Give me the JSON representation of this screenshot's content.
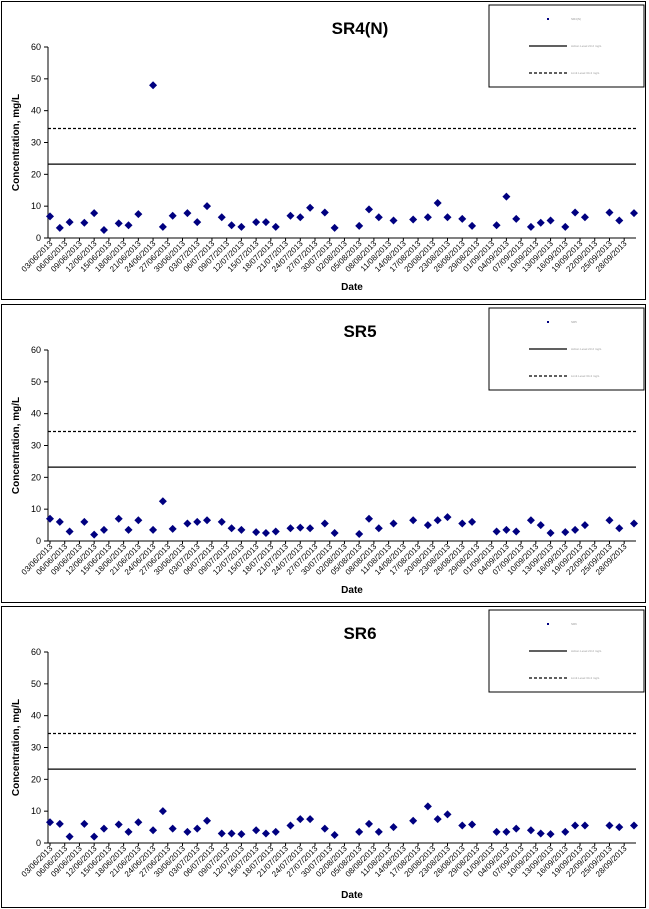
{
  "dates": [
    "03/06/2013",
    "06/06/2013",
    "09/06/2013",
    "12/06/2013",
    "15/06/2013",
    "18/06/2013",
    "21/06/2013",
    "24/06/2013",
    "27/06/2013",
    "30/06/2013",
    "03/07/2013",
    "06/07/2013",
    "09/07/2013",
    "12/07/2013",
    "15/07/2013",
    "18/07/2013",
    "21/07/2013",
    "24/07/2013",
    "27/07/2013",
    "30/07/2013",
    "02/08/2013",
    "05/08/2013",
    "08/08/2013",
    "11/08/2013",
    "14/08/2013",
    "17/08/2013",
    "20/08/2013",
    "23/08/2013",
    "26/08/2013",
    "29/08/2013",
    "01/09/2013",
    "04/09/2013",
    "07/09/2013",
    "10/09/2013",
    "13/09/2013",
    "16/09/2013",
    "19/09/2013",
    "22/09/2013",
    "25/09/2013",
    "28/09/2013"
  ],
  "chart_data": [
    {
      "type": "scatter",
      "title": "SR4(N)",
      "xlabel": "Date",
      "ylabel": "Concentration, mg/L",
      "ylim": [
        0,
        60
      ],
      "yticks": [
        0,
        10,
        20,
        30,
        40,
        50,
        60
      ],
      "xlim": [
        "03/06/2013",
        "30/09/2013"
      ],
      "grid": false,
      "legend_position": "top-right",
      "legend": [
        "SR4(N)",
        "Action Level 23.2 mg/L",
        "Limit Level 34.4 mg/L"
      ],
      "hlines": [
        {
          "value": 23.2,
          "style": "solid"
        },
        {
          "value": 34.4,
          "style": "dashed"
        }
      ],
      "points": [
        {
          "x": "03/06/2013",
          "y": 6.8
        },
        {
          "x": "05/06/2013",
          "y": 3.2
        },
        {
          "x": "07/06/2013",
          "y": 5.0
        },
        {
          "x": "10/06/2013",
          "y": 4.8
        },
        {
          "x": "12/06/2013",
          "y": 7.8
        },
        {
          "x": "14/06/2013",
          "y": 2.5
        },
        {
          "x": "17/06/2013",
          "y": 4.6
        },
        {
          "x": "19/06/2013",
          "y": 4.0
        },
        {
          "x": "21/06/2013",
          "y": 7.5
        },
        {
          "x": "24/06/2013",
          "y": 48.0
        },
        {
          "x": "26/06/2013",
          "y": 3.5
        },
        {
          "x": "28/06/2013",
          "y": 7.0
        },
        {
          "x": "01/07/2013",
          "y": 7.8
        },
        {
          "x": "03/07/2013",
          "y": 5.0
        },
        {
          "x": "05/07/2013",
          "y": 10.0
        },
        {
          "x": "08/07/2013",
          "y": 6.5
        },
        {
          "x": "10/07/2013",
          "y": 4.0
        },
        {
          "x": "12/07/2013",
          "y": 3.5
        },
        {
          "x": "15/07/2013",
          "y": 5.0
        },
        {
          "x": "17/07/2013",
          "y": 5.0
        },
        {
          "x": "19/07/2013",
          "y": 3.5
        },
        {
          "x": "22/07/2013",
          "y": 7.0
        },
        {
          "x": "24/07/2013",
          "y": 6.5
        },
        {
          "x": "26/07/2013",
          "y": 9.5
        },
        {
          "x": "29/07/2013",
          "y": 8.0
        },
        {
          "x": "31/07/2013",
          "y": 3.2
        },
        {
          "x": "05/08/2013",
          "y": 3.8
        },
        {
          "x": "07/08/2013",
          "y": 9.0
        },
        {
          "x": "09/08/2013",
          "y": 6.5
        },
        {
          "x": "12/08/2013",
          "y": 5.5
        },
        {
          "x": "16/08/2013",
          "y": 5.8
        },
        {
          "x": "19/08/2013",
          "y": 6.5
        },
        {
          "x": "21/08/2013",
          "y": 11.0
        },
        {
          "x": "23/08/2013",
          "y": 6.5
        },
        {
          "x": "26/08/2013",
          "y": 6.0
        },
        {
          "x": "28/08/2013",
          "y": 3.8
        },
        {
          "x": "02/09/2013",
          "y": 4.0
        },
        {
          "x": "04/09/2013",
          "y": 13.0
        },
        {
          "x": "06/09/2013",
          "y": 6.0
        },
        {
          "x": "09/09/2013",
          "y": 3.5
        },
        {
          "x": "11/09/2013",
          "y": 4.8
        },
        {
          "x": "13/09/2013",
          "y": 5.5
        },
        {
          "x": "16/09/2013",
          "y": 3.5
        },
        {
          "x": "18/09/2013",
          "y": 8.0
        },
        {
          "x": "20/09/2013",
          "y": 6.5
        },
        {
          "x": "25/09/2013",
          "y": 8.0
        },
        {
          "x": "27/09/2013",
          "y": 5.5
        },
        {
          "x": "30/09/2013",
          "y": 7.8
        }
      ]
    },
    {
      "type": "scatter",
      "title": "SR5",
      "xlabel": "Date",
      "ylabel": "Concentration, mg/L",
      "ylim": [
        0,
        60
      ],
      "yticks": [
        0,
        10,
        20,
        30,
        40,
        50,
        60
      ],
      "xlim": [
        "03/06/2013",
        "30/09/2013"
      ],
      "grid": false,
      "legend_position": "top-right",
      "legend": [
        "SR5",
        "Action Level 23.2 mg/L",
        "Limit Level 34.4 mg/L"
      ],
      "hlines": [
        {
          "value": 23.2,
          "style": "solid"
        },
        {
          "value": 34.4,
          "style": "dashed"
        }
      ],
      "points": [
        {
          "x": "03/06/2013",
          "y": 7.0
        },
        {
          "x": "05/06/2013",
          "y": 6.0
        },
        {
          "x": "07/06/2013",
          "y": 3.0
        },
        {
          "x": "10/06/2013",
          "y": 6.0
        },
        {
          "x": "12/06/2013",
          "y": 2.0
        },
        {
          "x": "14/06/2013",
          "y": 3.5
        },
        {
          "x": "17/06/2013",
          "y": 7.0
        },
        {
          "x": "19/06/2013",
          "y": 3.5
        },
        {
          "x": "21/06/2013",
          "y": 6.5
        },
        {
          "x": "24/06/2013",
          "y": 3.5
        },
        {
          "x": "26/06/2013",
          "y": 12.5
        },
        {
          "x": "28/06/2013",
          "y": 3.8
        },
        {
          "x": "01/07/2013",
          "y": 5.5
        },
        {
          "x": "03/07/2013",
          "y": 6.0
        },
        {
          "x": "05/07/2013",
          "y": 6.5
        },
        {
          "x": "08/07/2013",
          "y": 6.0
        },
        {
          "x": "10/07/2013",
          "y": 4.0
        },
        {
          "x": "12/07/2013",
          "y": 3.5
        },
        {
          "x": "15/07/2013",
          "y": 2.8
        },
        {
          "x": "17/07/2013",
          "y": 2.5
        },
        {
          "x": "19/07/2013",
          "y": 3.0
        },
        {
          "x": "22/07/2013",
          "y": 4.0
        },
        {
          "x": "24/07/2013",
          "y": 4.2
        },
        {
          "x": "26/07/2013",
          "y": 4.0
        },
        {
          "x": "29/07/2013",
          "y": 5.5
        },
        {
          "x": "31/07/2013",
          "y": 2.5
        },
        {
          "x": "05/08/2013",
          "y": 2.2
        },
        {
          "x": "07/08/2013",
          "y": 7.0
        },
        {
          "x": "09/08/2013",
          "y": 4.0
        },
        {
          "x": "12/08/2013",
          "y": 5.5
        },
        {
          "x": "16/08/2013",
          "y": 6.5
        },
        {
          "x": "19/08/2013",
          "y": 5.0
        },
        {
          "x": "21/08/2013",
          "y": 6.5
        },
        {
          "x": "23/08/2013",
          "y": 7.5
        },
        {
          "x": "26/08/2013",
          "y": 5.5
        },
        {
          "x": "28/08/2013",
          "y": 6.0
        },
        {
          "x": "02/09/2013",
          "y": 3.0
        },
        {
          "x": "04/09/2013",
          "y": 3.5
        },
        {
          "x": "06/09/2013",
          "y": 3.0
        },
        {
          "x": "09/09/2013",
          "y": 6.5
        },
        {
          "x": "11/09/2013",
          "y": 5.0
        },
        {
          "x": "13/09/2013",
          "y": 2.5
        },
        {
          "x": "16/09/2013",
          "y": 2.8
        },
        {
          "x": "18/09/2013",
          "y": 3.5
        },
        {
          "x": "20/09/2013",
          "y": 5.0
        },
        {
          "x": "25/09/2013",
          "y": 6.5
        },
        {
          "x": "27/09/2013",
          "y": 4.0
        },
        {
          "x": "30/09/2013",
          "y": 5.5
        }
      ]
    },
    {
      "type": "scatter",
      "title": "SR6",
      "xlabel": "Date",
      "ylabel": "Concentration, mg/L",
      "ylim": [
        0,
        60
      ],
      "yticks": [
        0,
        10,
        20,
        30,
        40,
        50,
        60
      ],
      "xlim": [
        "03/06/2013",
        "30/09/2013"
      ],
      "grid": false,
      "legend_position": "top-right",
      "legend": [
        "SR6",
        "Action Level 23.2 mg/L",
        "Limit Level 34.4 mg/L"
      ],
      "hlines": [
        {
          "value": 23.2,
          "style": "solid"
        },
        {
          "value": 34.4,
          "style": "dashed"
        }
      ],
      "points": [
        {
          "x": "03/06/2013",
          "y": 6.5
        },
        {
          "x": "05/06/2013",
          "y": 6.0
        },
        {
          "x": "07/06/2013",
          "y": 2.0
        },
        {
          "x": "10/06/2013",
          "y": 6.0
        },
        {
          "x": "12/06/2013",
          "y": 2.0
        },
        {
          "x": "14/06/2013",
          "y": 4.5
        },
        {
          "x": "17/06/2013",
          "y": 5.8
        },
        {
          "x": "19/06/2013",
          "y": 3.5
        },
        {
          "x": "21/06/2013",
          "y": 6.5
        },
        {
          "x": "24/06/2013",
          "y": 4.0
        },
        {
          "x": "26/06/2013",
          "y": 10.0
        },
        {
          "x": "28/06/2013",
          "y": 4.5
        },
        {
          "x": "01/07/2013",
          "y": 3.5
        },
        {
          "x": "03/07/2013",
          "y": 4.5
        },
        {
          "x": "05/07/2013",
          "y": 7.0
        },
        {
          "x": "08/07/2013",
          "y": 3.0
        },
        {
          "x": "10/07/2013",
          "y": 3.0
        },
        {
          "x": "12/07/2013",
          "y": 2.8
        },
        {
          "x": "15/07/2013",
          "y": 4.0
        },
        {
          "x": "17/07/2013",
          "y": 3.0
        },
        {
          "x": "19/07/2013",
          "y": 3.5
        },
        {
          "x": "22/07/2013",
          "y": 5.5
        },
        {
          "x": "24/07/2013",
          "y": 7.5
        },
        {
          "x": "26/07/2013",
          "y": 7.5
        },
        {
          "x": "29/07/2013",
          "y": 4.5
        },
        {
          "x": "31/07/2013",
          "y": 2.5
        },
        {
          "x": "05/08/2013",
          "y": 3.5
        },
        {
          "x": "07/08/2013",
          "y": 6.0
        },
        {
          "x": "09/08/2013",
          "y": 3.5
        },
        {
          "x": "12/08/2013",
          "y": 5.0
        },
        {
          "x": "16/08/2013",
          "y": 7.0
        },
        {
          "x": "19/08/2013",
          "y": 11.5
        },
        {
          "x": "21/08/2013",
          "y": 7.5
        },
        {
          "x": "23/08/2013",
          "y": 9.0
        },
        {
          "x": "26/08/2013",
          "y": 5.5
        },
        {
          "x": "28/08/2013",
          "y": 5.8
        },
        {
          "x": "02/09/2013",
          "y": 3.5
        },
        {
          "x": "04/09/2013",
          "y": 3.5
        },
        {
          "x": "06/09/2013",
          "y": 4.5
        },
        {
          "x": "09/09/2013",
          "y": 4.0
        },
        {
          "x": "11/09/2013",
          "y": 3.0
        },
        {
          "x": "13/09/2013",
          "y": 2.8
        },
        {
          "x": "16/09/2013",
          "y": 3.5
        },
        {
          "x": "18/09/2013",
          "y": 5.5
        },
        {
          "x": "20/09/2013",
          "y": 5.5
        },
        {
          "x": "25/09/2013",
          "y": 5.5
        },
        {
          "x": "27/09/2013",
          "y": 5.0
        },
        {
          "x": "30/09/2013",
          "y": 5.5
        }
      ]
    }
  ],
  "colors": {
    "marker": "#000080",
    "lines": "#000000",
    "legend_text": "#999999"
  }
}
